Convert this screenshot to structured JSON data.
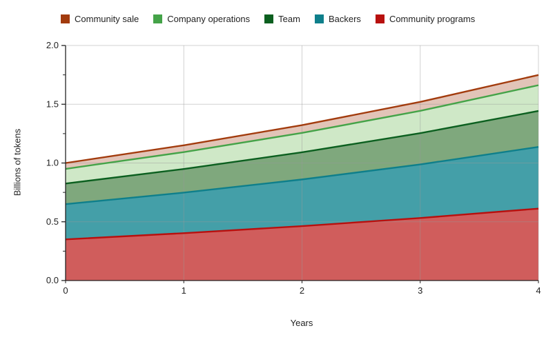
{
  "page": {
    "background": "#ffffff"
  },
  "chart_data": {
    "type": "area",
    "stacked": true,
    "title": "",
    "xlabel": "Years",
    "ylabel": "Billions of tokens",
    "x": [
      0,
      1,
      2,
      3,
      4
    ],
    "x_tick_labels": [
      "0",
      "1",
      "2",
      "3",
      "4"
    ],
    "y_tick_values": [
      0,
      0.5,
      1,
      1.5,
      2
    ],
    "y_tick_labels": [
      "0.0",
      "0.5",
      "1.0",
      "1.5",
      "2.0"
    ],
    "y_minor_tick_values": [
      0.25,
      0.75,
      1.25,
      1.75
    ],
    "xlim": [
      0,
      4
    ],
    "ylim": [
      0,
      2
    ],
    "grid": true,
    "legend_position": "top",
    "axis_color": "#222222",
    "grid_color": "#cccccc",
    "series": [
      {
        "name": "Community programs",
        "color": "#B8100E",
        "fill": "#D05D5C",
        "values": [
          0.35,
          0.403,
          0.463,
          0.532,
          0.612
        ]
      },
      {
        "name": "Backers",
        "color": "#0E7F8B",
        "fill": "#449FA8",
        "values": [
          0.3,
          0.345,
          0.397,
          0.456,
          0.525
        ]
      },
      {
        "name": "Team",
        "color": "#0B5F1F",
        "fill": "#7FA87D",
        "values": [
          0.175,
          0.201,
          0.231,
          0.266,
          0.306
        ]
      },
      {
        "name": "Company operations",
        "color": "#44A348",
        "fill": "#CFE8C7",
        "values": [
          0.125,
          0.144,
          0.165,
          0.19,
          0.219
        ]
      },
      {
        "name": "Community sale",
        "color": "#A23B0D",
        "fill": "#E2C4B8",
        "values": [
          0.05,
          0.058,
          0.066,
          0.076,
          0.087
        ]
      }
    ],
    "legend_labels": [
      "Community sale",
      "Company operations",
      "Team",
      "Backers",
      "Community programs"
    ]
  }
}
